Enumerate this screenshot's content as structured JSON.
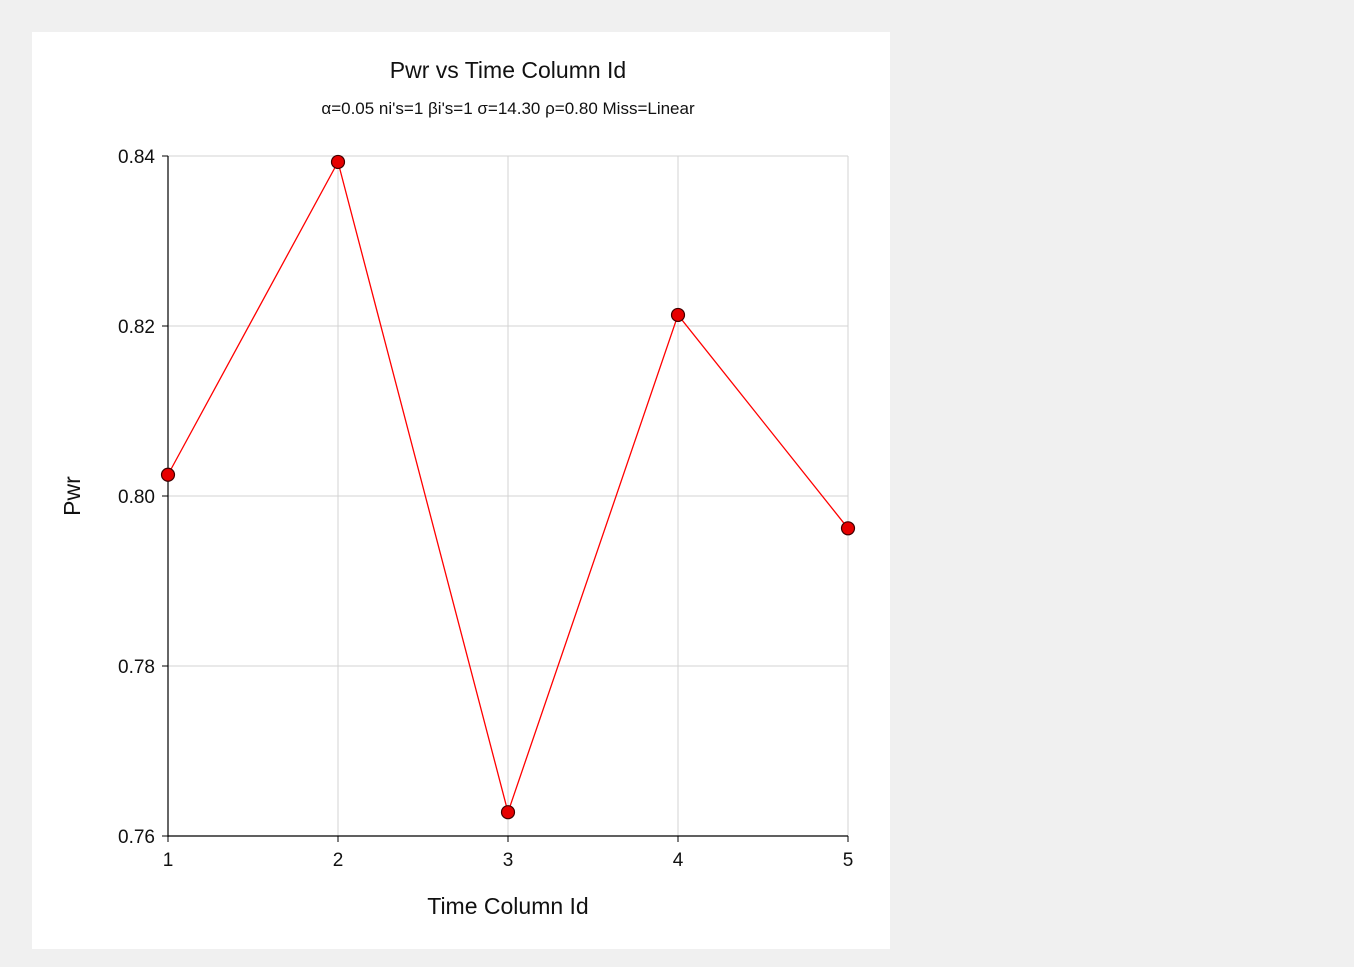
{
  "colors": {
    "page_background": "#f0f0f0",
    "panel_background": "#ffffff",
    "grid": "#d3d3d3",
    "axis": "#000000",
    "series_line": "#ff0000",
    "marker_fill": "#e60000",
    "marker_stroke": "#400000"
  },
  "chart_data": {
    "type": "line",
    "title": "Pwr vs Time Column Id",
    "subtitle": "α=0.05 ni's=1 βi's=1 σ=14.30 ρ=0.80 Miss=Linear",
    "xlabel": "Time Column Id",
    "ylabel": "Pwr",
    "xlim": [
      1,
      5
    ],
    "ylim": [
      0.76,
      0.84
    ],
    "grid": true,
    "x_ticks": [
      1,
      2,
      3,
      4,
      5
    ],
    "x_tick_labels": [
      "1",
      "2",
      "3",
      "4",
      "5"
    ],
    "y_ticks": [
      0.76,
      0.78,
      0.8,
      0.82,
      0.84
    ],
    "y_tick_labels": [
      "0.76",
      "0.78",
      "0.80",
      "0.82",
      "0.84"
    ],
    "series": [
      {
        "x": [
          1,
          2,
          3,
          4,
          5
        ],
        "values": [
          0.8025,
          0.8393,
          0.7628,
          0.8213,
          0.7962
        ]
      }
    ]
  }
}
